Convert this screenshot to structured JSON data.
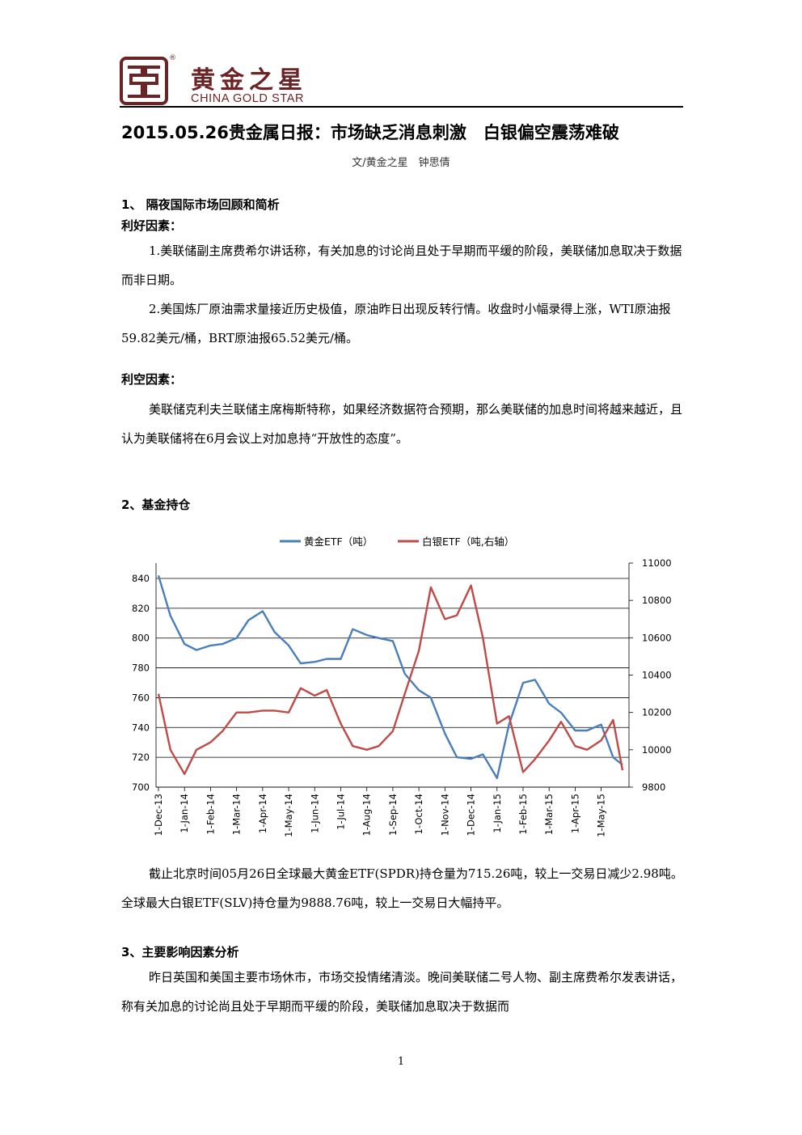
{
  "header": {
    "logo_cn": "黄金之星",
    "logo_en": "CHINA GOLD STAR",
    "registered_mark": "®"
  },
  "title": "2015.05.26贵金属日报：市场缺乏消息刺激　白银偏空震荡难破",
  "byline": "文/黄金之星　钟思倩",
  "section1": {
    "heading": "1、 隔夜国际市场回顾和简析",
    "positive_label": "利好因素：",
    "positive": [
      "1.美联储副主席费希尔讲话称，有关加息的讨论尚且处于早期而平缓的阶段，美联储加息取决于数据而非日期。",
      "2.美国炼厂原油需求量接近历史极值，原油昨日出现反转行情。收盘时小幅录得上涨，WTI原油报59.82美元/桶，BRT原油报65.52美元/桶。"
    ],
    "negative_label": "利空因素：",
    "negative": "美联储克利夫兰联储主席梅斯特称，如果经济数据符合预期，那么美联储的加息时间将越来越近，且认为美联储将在6月会议上对加息持“开放性的态度”。"
  },
  "section2": {
    "heading": "2、基金持仓",
    "text": "截止北京时间05月26日全球最大黄金ETF(SPDR)持仓量为715.26吨，较上一交易日减少2.98吨。全球最大白银ETF(SLV)持仓量为9888.76吨，较上一交易日大幅持平。"
  },
  "chart_data": {
    "type": "line",
    "title": "",
    "legend_position": "top",
    "grid": true,
    "colors": {
      "gold": "#4a7ebb",
      "silver": "#be4b48"
    },
    "x_tick_labels": [
      "1-Dec-13",
      "1-Jan-14",
      "1-Feb-14",
      "1-Mar-14",
      "1-Apr-14",
      "1-May-14",
      "1-Jun-14",
      "1-Jul-14",
      "1-Aug-14",
      "1-Sep-14",
      "1-Oct-14",
      "1-Nov-14",
      "1-Dec-14",
      "1-Jan-15",
      "1-Feb-15",
      "1-Mar-15",
      "1-Apr-15",
      "1-May-15"
    ],
    "y_left": {
      "ticks": [
        "700",
        "720",
        "740",
        "760",
        "780",
        "800",
        "820",
        "840"
      ],
      "range": [
        700,
        840
      ]
    },
    "y_right": {
      "ticks": [
        "9800",
        "10000",
        "10200",
        "10400",
        "10600",
        "10800",
        "11000"
      ],
      "range": [
        9800,
        11000
      ]
    },
    "x": [
      "1-Dec-13",
      "15-Dec-13",
      "1-Jan-14",
      "15-Jan-14",
      "1-Feb-14",
      "15-Feb-14",
      "1-Mar-14",
      "15-Mar-14",
      "1-Apr-14",
      "15-Apr-14",
      "1-May-14",
      "15-May-14",
      "1-Jun-14",
      "15-Jun-14",
      "1-Jul-14",
      "15-Jul-14",
      "1-Aug-14",
      "15-Aug-14",
      "1-Sep-14",
      "15-Sep-14",
      "1-Oct-14",
      "15-Oct-14",
      "1-Nov-14",
      "15-Nov-14",
      "1-Dec-14",
      "15-Dec-14",
      "1-Jan-15",
      "15-Jan-15",
      "1-Feb-15",
      "15-Feb-15",
      "1-Mar-15",
      "15-Mar-15",
      "1-Apr-15",
      "15-Apr-15",
      "1-May-15",
      "15-May-15",
      "26-May-15"
    ],
    "series": [
      {
        "name": "黄金ETF（吨）",
        "axis": "left",
        "values": [
          842,
          815,
          796,
          792,
          795,
          796,
          800,
          812,
          818,
          804,
          795,
          783,
          784,
          786,
          786,
          806,
          802,
          800,
          798,
          776,
          765,
          760,
          736,
          720,
          719,
          722,
          706,
          742,
          770,
          772,
          756,
          750,
          738,
          738,
          742,
          720,
          715
        ]
      },
      {
        "name": "白银ETF（吨,右轴）",
        "axis": "right",
        "values": [
          10300,
          10000,
          9870,
          10000,
          10040,
          10100,
          10200,
          10200,
          10210,
          10210,
          10200,
          10330,
          10290,
          10320,
          10140,
          10020,
          10000,
          10020,
          10100,
          10300,
          10530,
          10870,
          10700,
          10720,
          10880,
          10600,
          10140,
          10180,
          9880,
          9950,
          10050,
          10150,
          10020,
          10000,
          10050,
          10160,
          9890
        ]
      }
    ]
  },
  "section3": {
    "heading": "3、主要影响因素分析",
    "text": "昨日英国和美国主要市场休市，市场交投情绪清淡。晚间美联储二号人物、副主席费希尔发表讲话，称有关加息的讨论尚且处于早期而平缓的阶段，美联储加息取决于数据而"
  },
  "page_number": "1"
}
